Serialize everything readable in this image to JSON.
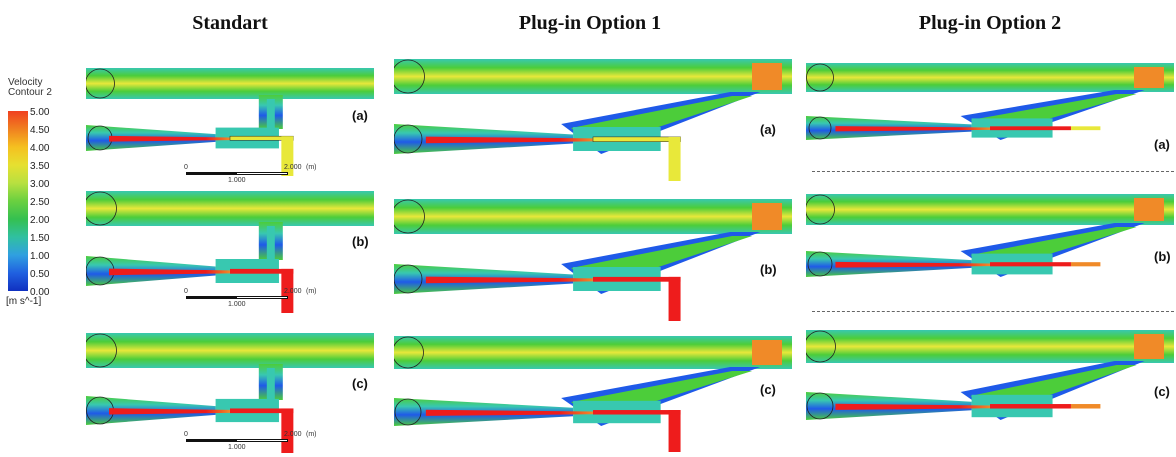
{
  "columns": {
    "c1": "Standart",
    "c2": "Plug-in Option 1",
    "c3": "Plug-in Option 2"
  },
  "legend": {
    "title_1": "Velocity",
    "title_2": "Contour 2",
    "unit": "[m s^-1]",
    "ticks": [
      "5.00",
      "4.50",
      "4.00",
      "3.50",
      "3.00",
      "2.50",
      "2.00",
      "1.50",
      "1.00",
      "0.50",
      "0.00"
    ],
    "colors": [
      "#f04020",
      "#f08020",
      "#f5c020",
      "#e6e030",
      "#b8e040",
      "#6ad040",
      "#34c050",
      "#30c0a0",
      "#30a0e0",
      "#2060e0",
      "#1030c0"
    ]
  },
  "panel_labels": {
    "a": "(a)",
    "b": "(b)",
    "c": "(c)"
  },
  "scale": {
    "zero": "0",
    "mid": "1.000",
    "max": "2.000",
    "unit": "(m)"
  },
  "palette": {
    "flow_green": "#4ccd3a",
    "flow_yellow": "#e8e83a",
    "flow_cyan": "#38c8b0",
    "flow_blue": "#1f5ae8",
    "jet_red": "#ee1c1c",
    "jet_orange": "#f08a28"
  }
}
